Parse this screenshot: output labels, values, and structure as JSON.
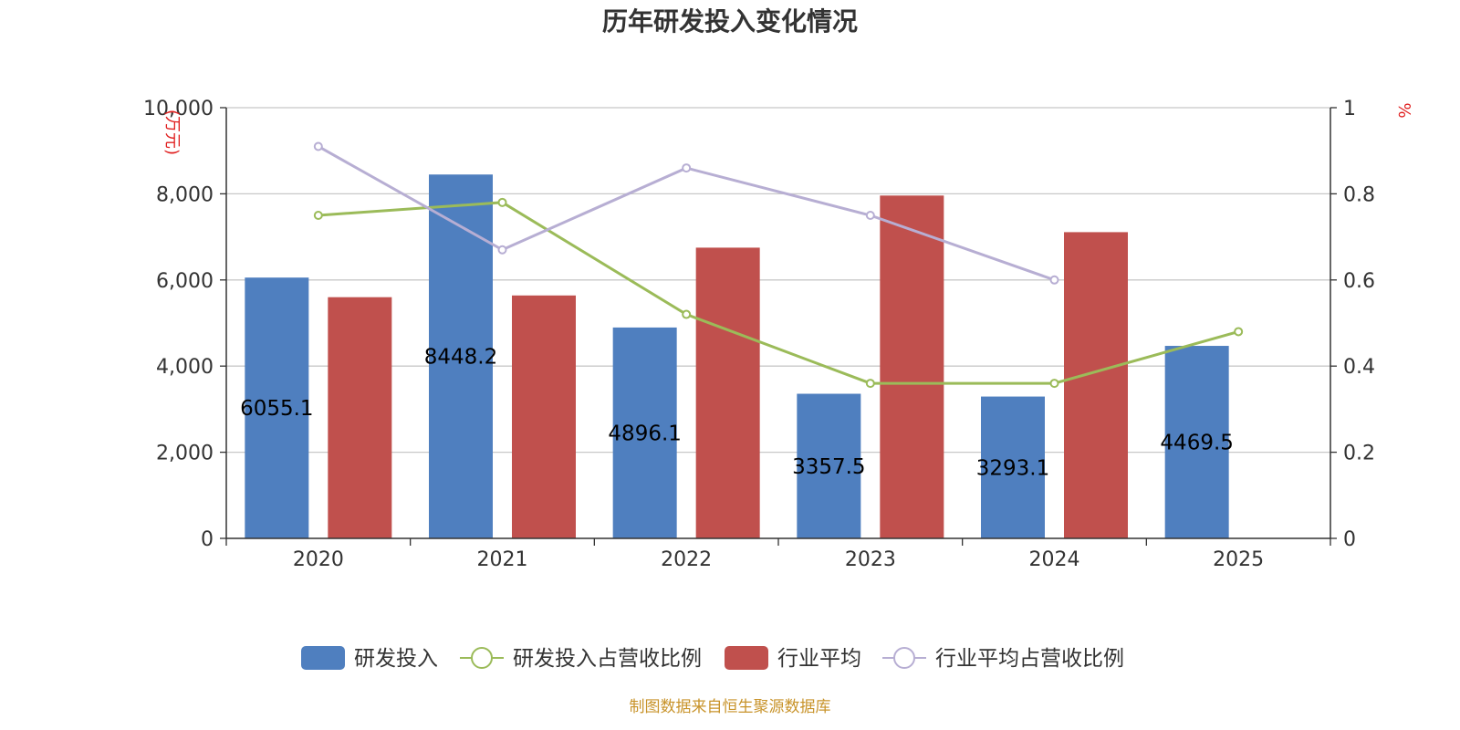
{
  "chart_data": {
    "type": "bar",
    "title": "历年研发投入变化情况",
    "categories": [
      "2020",
      "2021",
      "2022",
      "2023",
      "2024",
      "2025"
    ],
    "y_left": {
      "unit_label": "(万元)",
      "ylim": [
        0,
        10000
      ],
      "ticks": [
        "0",
        "2,000",
        "4,000",
        "6,000",
        "8,000",
        "10,000"
      ]
    },
    "y_right": {
      "unit_label": "%",
      "ylim": [
        0,
        1
      ],
      "ticks": [
        "0",
        "0.2",
        "0.4",
        "0.6",
        "0.8",
        "1"
      ]
    },
    "grid": true,
    "legend_position": "bottom",
    "series": [
      {
        "name": "研发投入",
        "kind": "bar",
        "axis": "left",
        "color": "#4f7fbf",
        "values": [
          6055.1,
          8448.2,
          4896.1,
          3357.5,
          3293.1,
          4469.5
        ],
        "labels": [
          "6055.1",
          "8448.2",
          "4896.1",
          "3357.5",
          "3293.1",
          "4469.5"
        ]
      },
      {
        "name": "研发投入占营收比例",
        "kind": "line",
        "axis": "right",
        "color": "#9bbb59",
        "values": [
          0.75,
          0.78,
          0.52,
          0.36,
          0.36,
          0.48
        ]
      },
      {
        "name": "行业平均",
        "kind": "bar",
        "axis": "left",
        "color": "#c0504d",
        "values": [
          5600,
          5640,
          6750,
          7960,
          7110,
          null
        ]
      },
      {
        "name": "行业平均占营收比例",
        "kind": "line",
        "axis": "right",
        "color": "#b7aed3",
        "values": [
          0.91,
          0.67,
          0.86,
          0.75,
          0.6,
          null
        ]
      }
    ],
    "source": "制图数据来自恒生聚源数据库"
  }
}
